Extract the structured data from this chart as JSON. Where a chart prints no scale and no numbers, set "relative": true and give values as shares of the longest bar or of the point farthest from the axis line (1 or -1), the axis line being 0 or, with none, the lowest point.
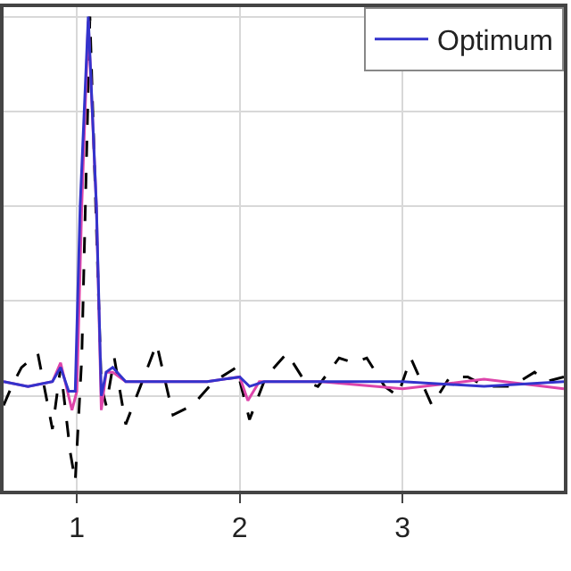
{
  "chart_data": {
    "type": "line",
    "relative": true,
    "grid": true,
    "legend": "top right",
    "xlim": [
      0.55,
      3.99
    ],
    "xticks": [
      1,
      2,
      3
    ],
    "series": [
      {
        "color": "#000000",
        "line_style": "dashed",
        "x": [
          0.55,
          0.6,
          0.66,
          0.76,
          0.85,
          0.9,
          0.96,
          0.99,
          1.03,
          1.08,
          1.15,
          1.18,
          1.23,
          1.3,
          1.39,
          1.49,
          1.59,
          1.71,
          1.84,
          1.98,
          2.06,
          2.16,
          2.29,
          2.4,
          2.48,
          2.61,
          2.7,
          2.78,
          2.89,
          2.97,
          3.05,
          3.18,
          3.29,
          3.4,
          3.51,
          3.67,
          3.81,
          3.88,
          3.99
        ],
        "values": [
          0.18,
          0.22,
          0.26,
          0.29,
          0.13,
          0.26,
          0.08,
          0.02,
          0.28,
          1.0,
          0.22,
          0.18,
          0.28,
          0.14,
          0.22,
          0.31,
          0.16,
          0.18,
          0.23,
          0.26,
          0.15,
          0.24,
          0.29,
          0.23,
          0.22,
          0.28,
          0.27,
          0.28,
          0.22,
          0.2,
          0.28,
          0.18,
          0.24,
          0.24,
          0.22,
          0.22,
          0.25,
          0.23,
          0.24
        ]
      },
      {
        "color": "#dd44aa",
        "line_style": "solid",
        "x": [
          0.55,
          0.7,
          0.85,
          0.9,
          0.97,
          1.0,
          1.03,
          1.07,
          1.12,
          1.15,
          1.18,
          1.22,
          1.3,
          1.5,
          1.8,
          2.0,
          2.05,
          2.12,
          2.5,
          3.0,
          3.5,
          3.99
        ],
        "values": [
          0.23,
          0.22,
          0.23,
          0.27,
          0.17,
          0.21,
          0.6,
          0.99,
          0.6,
          0.17,
          0.25,
          0.25,
          0.23,
          0.23,
          0.23,
          0.24,
          0.19,
          0.23,
          0.23,
          0.215,
          0.235,
          0.215
        ]
      },
      {
        "name": "Optimum",
        "color": "#3333cc",
        "line_style": "solid",
        "x": [
          0.55,
          0.7,
          0.85,
          0.9,
          0.95,
          0.99,
          1.02,
          1.07,
          1.12,
          1.15,
          1.18,
          1.22,
          1.3,
          1.5,
          1.8,
          2.0,
          2.06,
          2.15,
          2.5,
          3.0,
          3.5,
          3.99
        ],
        "values": [
          0.23,
          0.22,
          0.23,
          0.26,
          0.21,
          0.21,
          0.6,
          1.0,
          0.6,
          0.2,
          0.25,
          0.26,
          0.23,
          0.23,
          0.23,
          0.24,
          0.22,
          0.23,
          0.23,
          0.23,
          0.22,
          0.23
        ]
      }
    ]
  }
}
